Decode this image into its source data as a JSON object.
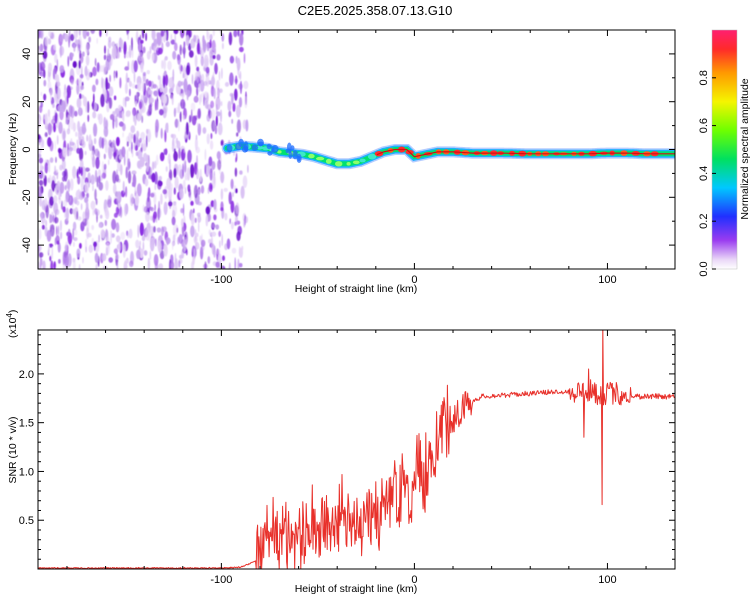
{
  "title": "C2E5.2025.358.07.13.G10",
  "colors": {
    "line": "#e8302a",
    "axis": "#000000",
    "scatter": "#8a2be2"
  },
  "chart_data": [
    {
      "type": "heatmap",
      "name": "spectrogram",
      "xlabel": "Height of straight line (km)",
      "ylabel": "Frequency (Hz)",
      "xlim": [
        -195,
        135
      ],
      "ylim": [
        -50,
        50
      ],
      "xticks": [
        -100,
        0,
        100
      ],
      "xtick_labels": [
        "-100",
        "0",
        "100"
      ],
      "yticks": [
        -40,
        -20,
        0,
        20,
        40
      ],
      "ytick_labels": [
        "-40",
        "-20",
        "0",
        "20",
        "40"
      ],
      "noise_region_x": [
        -195,
        -92
      ],
      "signal_track": {
        "x": [
          -97,
          -90,
          -83,
          -76,
          -70,
          -64,
          -58,
          -52,
          -46,
          -40,
          -34,
          -28,
          -22,
          -16,
          -10,
          -4,
          0,
          6,
          12,
          20,
          30,
          45,
          60,
          75,
          90,
          100,
          110,
          120,
          135
        ],
        "y": [
          0.5,
          1.5,
          1.0,
          0.5,
          -1.0,
          -1.5,
          -2.0,
          -3.0,
          -4.5,
          -6.0,
          -6.0,
          -5.0,
          -3.0,
          -1.0,
          0.0,
          0.0,
          -3.0,
          -2.0,
          -1.0,
          -1.0,
          -1.5,
          -1.5,
          -1.8,
          -1.8,
          -1.8,
          -1.5,
          -1.5,
          -1.8,
          -1.8
        ]
      }
    },
    {
      "type": "colorbar",
      "name": "colorbar",
      "label": "Normalized spectral amplitude",
      "range": [
        0,
        1
      ],
      "ticks": [
        0.0,
        0.2,
        0.4,
        0.6,
        0.8
      ],
      "tick_labels": [
        "0.0",
        "0.2",
        "0.4",
        "0.6",
        "0.8"
      ]
    },
    {
      "type": "line",
      "name": "snr",
      "xlabel": "Height of straight line (km)",
      "ylabel": "SNR (10 * v/v)",
      "scale_label": "(x10",
      "scale_exponent": "4",
      "scale_close": ")",
      "xlim": [
        -195,
        135
      ],
      "ylim": [
        0,
        2.45
      ],
      "xticks": [
        -100,
        0,
        100
      ],
      "xtick_labels": [
        "-100",
        "0",
        "100"
      ],
      "yticks": [
        0.5,
        1.0,
        1.5,
        2.0
      ],
      "ytick_labels": [
        "0.5",
        "1.0",
        "1.5",
        "2.0"
      ],
      "series": [
        {
          "name": "SNR",
          "x": [
            -195,
            -100,
            -90,
            -82,
            -78,
            -72,
            -65,
            -60,
            -52,
            -45,
            -35,
            -25,
            -18,
            -12,
            -5,
            0,
            5,
            10,
            15,
            20,
            25,
            30,
            35,
            45,
            60,
            75,
            85,
            90,
            95,
            100,
            105,
            110,
            115,
            120,
            135
          ],
          "y": [
            0.01,
            0.01,
            0.02,
            0.08,
            0.25,
            0.35,
            0.3,
            0.32,
            0.38,
            0.42,
            0.45,
            0.5,
            0.55,
            0.7,
            0.75,
            0.8,
            0.95,
            1.2,
            1.45,
            1.55,
            1.65,
            1.72,
            1.77,
            1.78,
            1.8,
            1.82,
            1.82,
            1.83,
            1.8,
            1.8,
            1.8,
            1.78,
            1.77,
            1.77,
            1.77
          ]
        }
      ]
    }
  ]
}
